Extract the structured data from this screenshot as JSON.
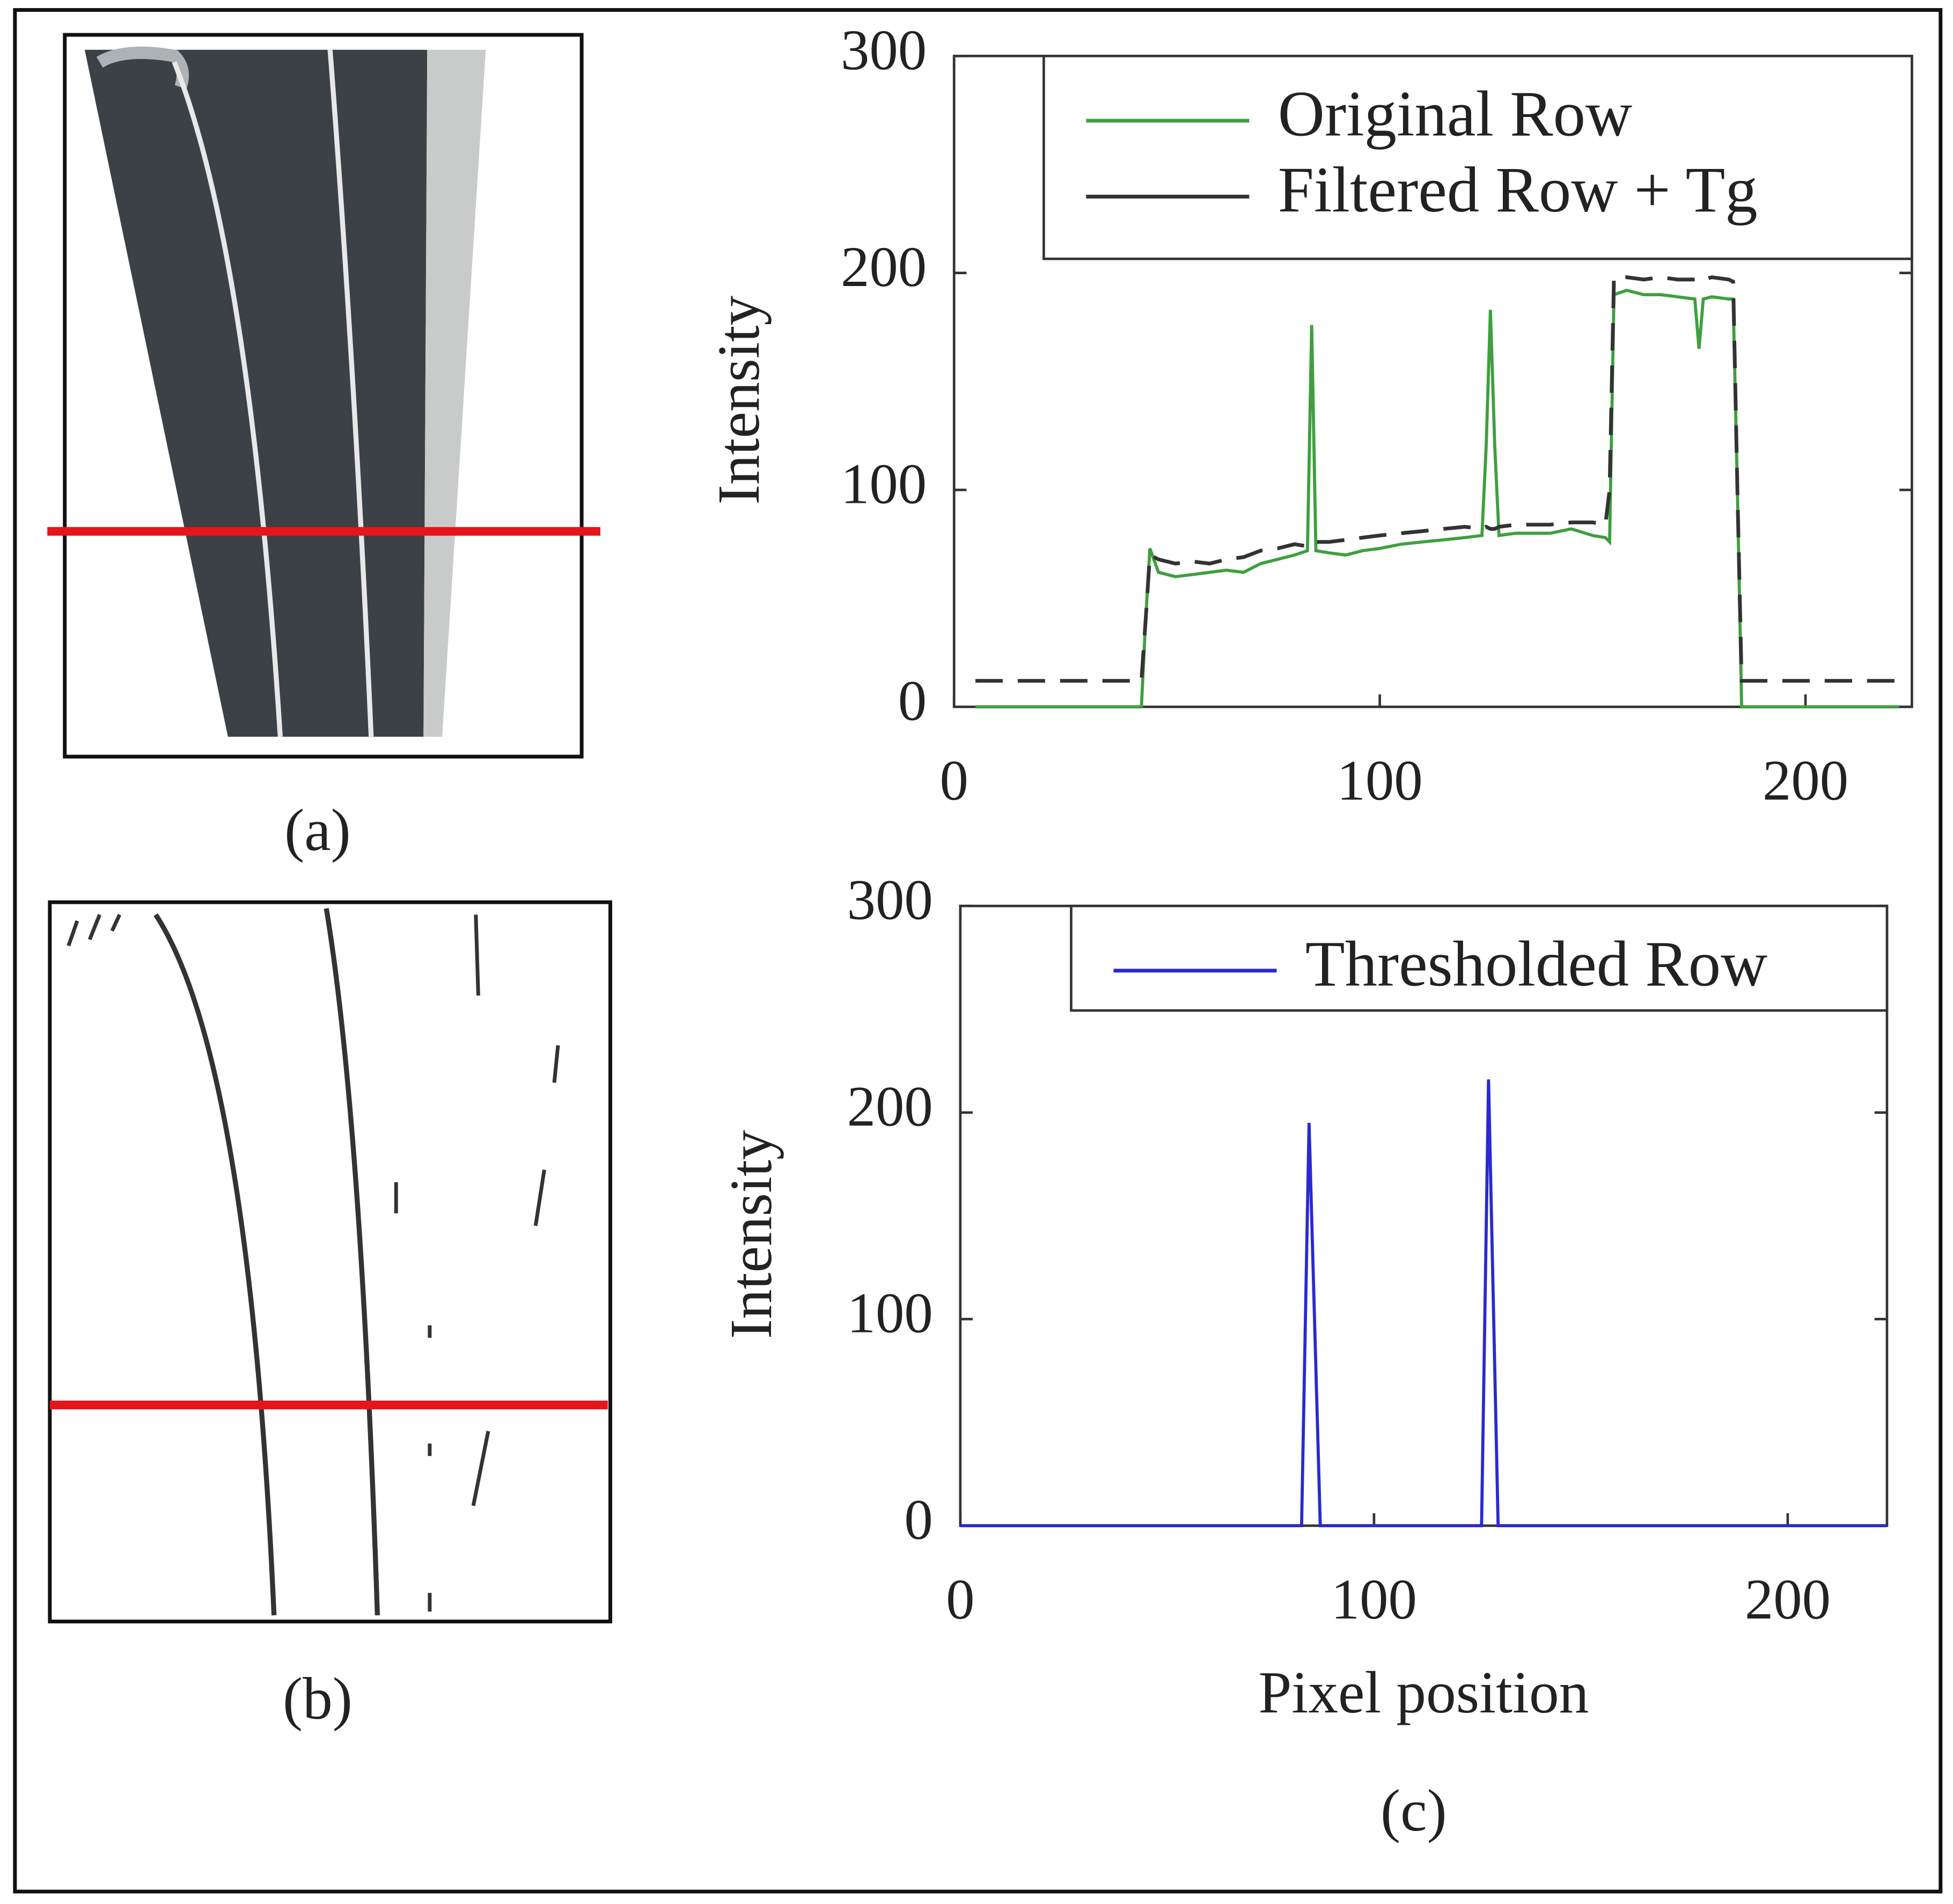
{
  "panel_labels": [
    "(a)",
    "(b)",
    "(c)"
  ],
  "chart_data": [
    {
      "type": "line",
      "ylabel": "Intensity",
      "xlim": [
        0,
        225
      ],
      "xticks": [
        0,
        100,
        200
      ],
      "ylim": [
        0,
        300
      ],
      "yticks": [
        0,
        100,
        200,
        300
      ],
      "legend": "upper right",
      "x": [
        5,
        44,
        45,
        46,
        48,
        52,
        56,
        60,
        64,
        68,
        72,
        76,
        80,
        83,
        84,
        85,
        88,
        92,
        96,
        100,
        105,
        110,
        115,
        120,
        124,
        125,
        126,
        127,
        128,
        132,
        136,
        140,
        145,
        150,
        153,
        154,
        155,
        158,
        162,
        166,
        170,
        174,
        175,
        176,
        178,
        182,
        183,
        184,
        185,
        190,
        200,
        210,
        222
      ],
      "series": [
        {
          "name": "Original Row",
          "color": "#3f9f3f",
          "dashed": false,
          "values": [
            0,
            0,
            40,
            73,
            62,
            60,
            61,
            62,
            63,
            62,
            66,
            68,
            70,
            72,
            176,
            72,
            71,
            70,
            72,
            73,
            75,
            76,
            77,
            78,
            79,
            120,
            183,
            120,
            79,
            80,
            80,
            80,
            82,
            79,
            78,
            76,
            190,
            192,
            190,
            190,
            189,
            188,
            165,
            188,
            189,
            188,
            188,
            100,
            0,
            0,
            0,
            0,
            0
          ]
        },
        {
          "name": "Filtered Row + Tg",
          "color": "#333333",
          "dashed": true,
          "values": [
            12,
            12,
            40,
            70,
            68,
            66,
            67,
            66,
            68,
            69,
            72,
            73,
            75,
            74,
            76,
            76,
            76,
            77,
            78,
            79,
            80,
            81,
            82,
            83,
            82,
            83,
            82,
            82,
            83,
            84,
            84,
            84,
            85,
            85,
            84,
            100,
            198,
            198,
            197,
            198,
            197,
            197,
            196,
            197,
            198,
            197,
            196,
            100,
            12,
            12,
            12,
            12,
            12
          ]
        }
      ]
    },
    {
      "type": "line",
      "xlabel": "Pixel position",
      "ylabel": "Intensity",
      "xlim": [
        0,
        224
      ],
      "xticks": [
        0,
        100,
        200
      ],
      "ylim": [
        0,
        300
      ],
      "yticks": [
        0,
        100,
        200,
        300
      ],
      "legend": "upper right",
      "x": [
        0,
        82.5,
        84.3,
        87,
        126,
        127.7,
        130,
        224
      ],
      "series": [
        {
          "name": "Thresholded Row",
          "color": "#2a2ad0",
          "dashed": false,
          "values": [
            0,
            0,
            195,
            0,
            0,
            216,
            0,
            0
          ]
        }
      ]
    }
  ]
}
